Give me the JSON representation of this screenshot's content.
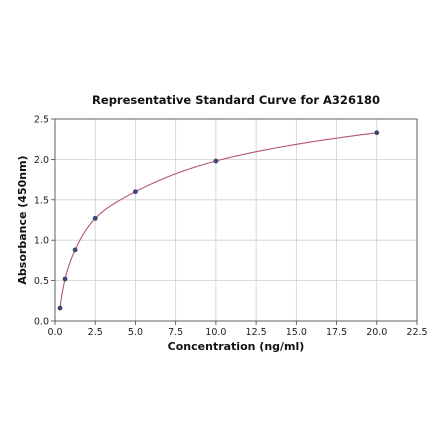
{
  "chart_data": {
    "type": "scatter",
    "title": "Representative Standard Curve for A326180",
    "xlabel": "Concentration (ng/ml)",
    "ylabel": "Absorbance (450nm)",
    "xlim": [
      0,
      22.5
    ],
    "ylim": [
      0,
      2.5
    ],
    "xticks": [
      "0.0",
      "2.5",
      "5.0",
      "7.5",
      "10.0",
      "12.5",
      "15.0",
      "17.5",
      "20.0",
      "22.5"
    ],
    "yticks": [
      "0.0",
      "0.5",
      "1.0",
      "1.5",
      "2.0",
      "2.5"
    ],
    "grid": true,
    "series": [
      {
        "x": [
          0.3125,
          0.625,
          1.25,
          2.5,
          5.0,
          10.0,
          20.0
        ],
        "y": [
          0.16,
          0.52,
          0.88,
          1.27,
          1.6,
          1.98,
          2.33
        ],
        "color": "#3d4476",
        "fit_color": "#b5566f"
      }
    ]
  }
}
